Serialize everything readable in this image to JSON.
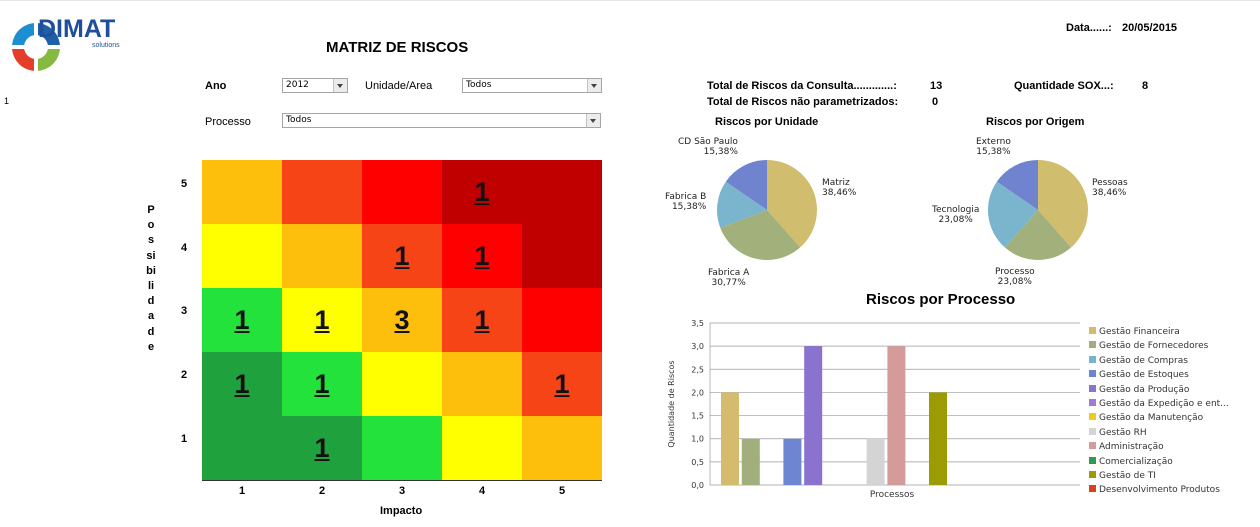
{
  "logo": {
    "brand": "DIMAT",
    "sub": "solutions"
  },
  "page_marker": "1",
  "header": {
    "title": "MATRIZ DE RISCOS",
    "date_label": "Data......:",
    "date_value": "20/05/2015"
  },
  "filters": {
    "ano_label": "Ano",
    "ano_value": "2012",
    "unidade_label": "Unidade/Area",
    "unidade_value": "Todos",
    "processo_label": "Processo",
    "processo_value": "Todos"
  },
  "summary": {
    "total_label": "Total de Riscos da Consulta.............:",
    "total_value": "13",
    "naopar_label": "Total de Riscos não parametrizados:",
    "naopar_value": "0",
    "sox_label": "Quantidade SOX...:",
    "sox_value": "8"
  },
  "matrix": {
    "vertical_label": "Possibilidade",
    "horizontal_label": "Impacto",
    "rows": [
      "5",
      "4",
      "3",
      "2",
      "1"
    ],
    "cols": [
      "1",
      "2",
      "3",
      "4",
      "5"
    ],
    "colors": [
      [
        "#fdbf0c",
        "#f64416",
        "#ff0000",
        "#c00000",
        "#c00000"
      ],
      [
        "#ffff00",
        "#fdbf0c",
        "#f64416",
        "#ff0000",
        "#c00000"
      ],
      [
        "#22e23b",
        "#ffff00",
        "#fdbf0c",
        "#f64416",
        "#ff0000"
      ],
      [
        "#1fa13d",
        "#22e23b",
        "#ffff00",
        "#fdbf0c",
        "#f64416"
      ],
      [
        "#1fa13d",
        "#1fa13d",
        "#22e23b",
        "#ffff00",
        "#fdbf0c"
      ]
    ],
    "counts": [
      [
        "",
        "",
        "",
        "1",
        ""
      ],
      [
        "",
        "",
        "1",
        "1",
        ""
      ],
      [
        "1",
        "1",
        "3",
        "1",
        ""
      ],
      [
        "1",
        "1",
        "",
        "",
        "1"
      ],
      [
        "",
        "1",
        "",
        "",
        ""
      ]
    ]
  },
  "pie_unidade": {
    "title": "Riscos por Unidade",
    "slices": [
      {
        "name": "Matriz",
        "label": "38,46%",
        "value": 38.46,
        "color": "#d0bd6e"
      },
      {
        "name": "Fabrica A",
        "label": "30,77%",
        "value": 30.77,
        "color": "#a2b07b"
      },
      {
        "name": "Fabrica B",
        "label": "15,38%",
        "value": 15.38,
        "color": "#7ab4cd"
      },
      {
        "name": "CD São Paulo",
        "label": "15,38%",
        "value": 15.38,
        "color": "#6f83cf"
      }
    ]
  },
  "pie_origem": {
    "title": "Riscos por Origem",
    "slices": [
      {
        "name": "Pessoas",
        "label": "38,46%",
        "value": 38.46,
        "color": "#d0bd6e"
      },
      {
        "name": "Processo",
        "label": "23,08%",
        "value": 23.08,
        "color": "#a2b07b"
      },
      {
        "name": "Tecnologia",
        "label": "23,08%",
        "value": 23.08,
        "color": "#7ab4cd"
      },
      {
        "name": "Externo",
        "label": "15,38%",
        "value": 15.38,
        "color": "#6f83cf"
      }
    ]
  },
  "chart_data": {
    "type": "bar",
    "title": "Riscos por Processo",
    "xlabel": "Processos",
    "ylabel": "Quantidade de Riscos",
    "ylim": [
      0,
      3.5
    ],
    "yticks": [
      "0,0",
      "0,5",
      "1,0",
      "1,5",
      "2,0",
      "2,5",
      "3,0",
      "3,5"
    ],
    "legend_position": "right",
    "series": [
      {
        "name": "Gestão Financeira",
        "value": 2,
        "color": "#d4bb6e"
      },
      {
        "name": "Gestão de Fornecedores",
        "value": 1,
        "color": "#a0af7c"
      },
      {
        "name": "Gestão de Compras",
        "value": 0,
        "color": "#76b4c9"
      },
      {
        "name": "Gestão de Estoques",
        "value": 1,
        "color": "#6e86d2"
      },
      {
        "name": "Gestão da Produção",
        "value": 3,
        "color": "#8973cf"
      },
      {
        "name": "Gestão da Expedição e ent...",
        "value": 0,
        "color": "#a07bd0"
      },
      {
        "name": "Gestão da Manutenção",
        "value": 0,
        "color": "#f3c91d"
      },
      {
        "name": "Gestão RH",
        "value": 1,
        "color": "#d4d4d4"
      },
      {
        "name": "Administração",
        "value": 3,
        "color": "#d39c9a"
      },
      {
        "name": "Comercialização",
        "value": 0,
        "color": "#2f9a52"
      },
      {
        "name": "Gestão de TI",
        "value": 2,
        "color": "#9b9b04"
      },
      {
        "name": "Desenvolvimento Produtos",
        "value": 0,
        "color": "#d9421e"
      }
    ]
  }
}
